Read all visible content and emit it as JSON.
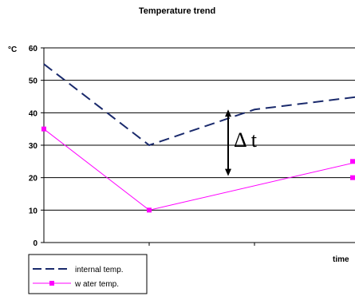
{
  "chart_data": {
    "type": "line",
    "title": "Temperature trend",
    "ylabel": "°C",
    "xlabel": "time",
    "ylim": [
      0,
      60
    ],
    "yticks": [
      0,
      10,
      20,
      30,
      40,
      50,
      60
    ],
    "x": [
      0,
      1,
      2,
      3,
      4
    ],
    "grid": true,
    "legend_position": "bottom-left",
    "series": [
      {
        "name": "internal temp.",
        "values": [
          55,
          30,
          41,
          45,
          40
        ],
        "color": "#1a2a6c",
        "style": "dashed"
      },
      {
        "name": "w ater temp.",
        "values": [
          35,
          10,
          null,
          25,
          20
        ],
        "color": "#ff00ff",
        "style": "solid-square-markers"
      }
    ],
    "annotation": {
      "label": "Δ t",
      "x": 1.75,
      "from": 20.5,
      "to": 41
    }
  }
}
